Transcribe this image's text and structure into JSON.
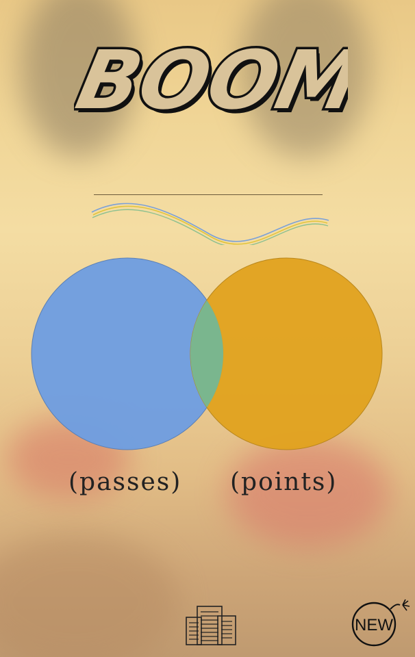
{
  "title": "BOOM",
  "venn": {
    "left": {
      "label": "(passes)",
      "color": "#6f9ee0"
    },
    "right": {
      "label": "(points)",
      "color": "#e0a21f"
    },
    "overlap_color": "#7ab68e"
  },
  "badge": {
    "text": "NEW",
    "icon": "bomb-icon"
  },
  "footer_icon": "buildings-icon",
  "colors": {
    "background": "#f0d596",
    "ink": "#111111"
  }
}
